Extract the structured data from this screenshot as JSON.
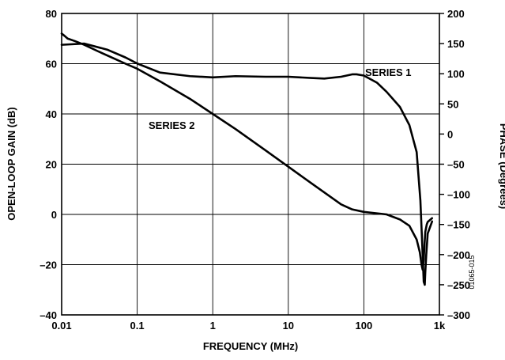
{
  "chart_data": {
    "type": "line",
    "xlabel": "FREQUENCY (MHz)",
    "ylabel": "OPEN-LOOP GAIN (dB)",
    "y2label": "PHASE (Degrees)",
    "x_scale": "log",
    "xlim": [
      0.01,
      1000
    ],
    "ylim": [
      -40,
      80
    ],
    "y2lim": [
      -300,
      200
    ],
    "grid": true,
    "x_ticks": [
      {
        "value": 0.01,
        "label": "0.01"
      },
      {
        "value": 0.1,
        "label": "0.1"
      },
      {
        "value": 1,
        "label": "1"
      },
      {
        "value": 10,
        "label": "10"
      },
      {
        "value": 100,
        "label": "100"
      },
      {
        "value": 1000,
        "label": "1k"
      }
    ],
    "y_ticks": [
      {
        "value": 80,
        "label": "80"
      },
      {
        "value": 60,
        "label": "60"
      },
      {
        "value": 40,
        "label": "40"
      },
      {
        "value": 20,
        "label": "20"
      },
      {
        "value": 0,
        "label": "0"
      },
      {
        "value": -20,
        "label": "–20"
      },
      {
        "value": -40,
        "label": "–40"
      }
    ],
    "y2_ticks": [
      {
        "value": 200,
        "label": "200"
      },
      {
        "value": 150,
        "label": "150"
      },
      {
        "value": 100,
        "label": "100"
      },
      {
        "value": 50,
        "label": "50"
      },
      {
        "value": 0,
        "label": "0"
      },
      {
        "value": -50,
        "label": "–50"
      },
      {
        "value": -100,
        "label": "–100"
      },
      {
        "value": -150,
        "label": "–150"
      },
      {
        "value": -200,
        "label": "–200"
      },
      {
        "value": -250,
        "label": "–250"
      },
      {
        "value": -300,
        "label": "–300"
      }
    ],
    "series": [
      {
        "name": "SERIES 1",
        "axis": "y2",
        "x": [
          0.01,
          0.02,
          0.04,
          0.07,
          0.1,
          0.2,
          0.5,
          1,
          2,
          5,
          10,
          20,
          30,
          50,
          70,
          80,
          100,
          150,
          200,
          300,
          400,
          500,
          560,
          600,
          620,
          640,
          650,
          670,
          700,
          800
        ],
        "y": [
          148,
          150,
          140,
          127,
          117,
          102,
          96,
          94,
          96,
          95,
          95,
          93,
          92,
          95,
          99,
          99,
          97,
          85,
          70,
          45,
          15,
          -30,
          -110,
          -200,
          -245,
          -250,
          -230,
          -200,
          -165,
          -145
        ]
      },
      {
        "name": "SERIES 2",
        "axis": "y",
        "x": [
          0.01,
          0.011,
          0.012,
          0.015,
          0.02,
          0.03,
          0.05,
          0.07,
          0.1,
          0.2,
          0.5,
          1,
          2,
          5,
          10,
          20,
          50,
          70,
          100,
          200,
          300,
          400,
          500,
          550,
          580,
          600,
          620,
          630,
          650,
          680,
          700,
          800
        ],
        "y": [
          72,
          71,
          70,
          69,
          67.5,
          65,
          62,
          60,
          58,
          53,
          46,
          40,
          34,
          25.5,
          19,
          12.5,
          4,
          2,
          1,
          0,
          -2,
          -4.5,
          -10,
          -15,
          -20,
          -22,
          -18,
          -14,
          -7,
          -4,
          -3,
          -1.5
        ]
      }
    ],
    "annotations": [
      {
        "text": "SERIES 1"
      },
      {
        "text": "SERIES 2"
      },
      {
        "text": "01065-015"
      }
    ]
  }
}
